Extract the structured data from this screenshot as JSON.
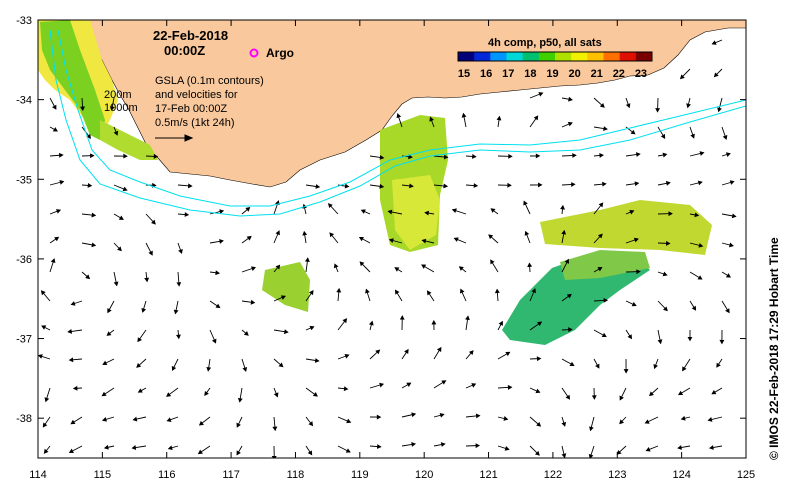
{
  "header": {
    "date": "22-Feb-2018",
    "time": "00:00Z",
    "argo_label": "Argo"
  },
  "notes": {
    "contours_line1": "200m",
    "contours_line2": "1000m",
    "gsla_line1": "GSLA (0.1m contours)",
    "gsla_line2": "and velocities for",
    "gsla_line3": "17-Feb 00:00Z",
    "gsla_line4": "0.5m/s (1kt 24h)"
  },
  "colorbar": {
    "title": "4h comp, p50, all sats",
    "ticks": [
      "15",
      "16",
      "17",
      "18",
      "19",
      "20",
      "21",
      "22",
      "23"
    ],
    "min": 15,
    "max": 23.5,
    "colors": [
      "#00007a",
      "#0028d8",
      "#0096ff",
      "#00d8d8",
      "#00c070",
      "#40d000",
      "#b0e000",
      "#f0f000",
      "#ffc000",
      "#ff7000",
      "#e01000",
      "#7a0000"
    ]
  },
  "credit": "© IMOS 22-Feb-2018 17:29 Hobart Time",
  "axes": {
    "x_ticks": [
      "114",
      "115",
      "116",
      "117",
      "118",
      "119",
      "120",
      "121",
      "122",
      "123",
      "124",
      "125"
    ],
    "y_ticks": [
      "-33",
      "-34",
      "-35",
      "-36",
      "-37",
      "-38"
    ],
    "lon_range": [
      114,
      125
    ],
    "lat_range": [
      -38.5,
      -33
    ]
  },
  "colors": {
    "land": "#f9c89c",
    "contour": "#00e0f0",
    "argo": "#ff00ff"
  }
}
